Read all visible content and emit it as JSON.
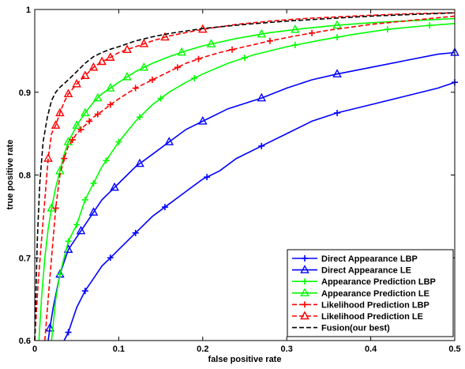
{
  "chart_data": {
    "type": "line",
    "xlabel": "false positive rate",
    "ylabel": "true positive rate",
    "xlim": [
      0,
      0.5
    ],
    "ylim": [
      0.6,
      1
    ],
    "xticks": [
      "0",
      "0.1",
      "0.2",
      "0.3",
      "0.4",
      "0.5"
    ],
    "yticks": [
      "0.6",
      "0.7",
      "0.8",
      "0.9",
      "1"
    ],
    "legend_position": "bottom-right",
    "grid": false,
    "series": [
      {
        "name": "Direct Appearance LBP",
        "color": "#0000ff",
        "dash": "solid",
        "marker": "plus",
        "x": [
          0.035,
          0.04,
          0.045,
          0.05,
          0.06,
          0.07,
          0.08,
          0.09,
          0.1,
          0.12,
          0.14,
          0.16,
          0.18,
          0.2,
          0.22,
          0.24,
          0.27,
          0.3,
          0.33,
          0.36,
          0.4,
          0.44,
          0.48,
          0.5
        ],
        "y": [
          0.6,
          0.61,
          0.625,
          0.64,
          0.66,
          0.675,
          0.69,
          0.7,
          0.71,
          0.73,
          0.75,
          0.765,
          0.78,
          0.795,
          0.805,
          0.82,
          0.835,
          0.85,
          0.865,
          0.875,
          0.885,
          0.895,
          0.905,
          0.912
        ],
        "marker_x": [
          0.04,
          0.06,
          0.09,
          0.12,
          0.155,
          0.205,
          0.27,
          0.36,
          0.5
        ]
      },
      {
        "name": "Direct Appearance LE",
        "color": "#0000ff",
        "dash": "solid",
        "marker": "triangle",
        "x": [
          0.016,
          0.018,
          0.022,
          0.026,
          0.03,
          0.035,
          0.04,
          0.05,
          0.06,
          0.07,
          0.08,
          0.09,
          0.1,
          0.12,
          0.14,
          0.16,
          0.18,
          0.2,
          0.23,
          0.27,
          0.3,
          0.33,
          0.36,
          0.4,
          0.44,
          0.48,
          0.5
        ],
        "y": [
          0.6,
          0.615,
          0.64,
          0.66,
          0.68,
          0.695,
          0.71,
          0.725,
          0.74,
          0.755,
          0.77,
          0.78,
          0.79,
          0.81,
          0.825,
          0.84,
          0.855,
          0.865,
          0.88,
          0.893,
          0.905,
          0.915,
          0.922,
          0.93,
          0.938,
          0.946,
          0.948
        ],
        "marker_x": [
          0.018,
          0.03,
          0.04,
          0.055,
          0.07,
          0.095,
          0.125,
          0.16,
          0.2,
          0.27,
          0.36,
          0.5
        ]
      },
      {
        "name": "Appearance Prediction LBP",
        "color": "#00ff00",
        "dash": "solid",
        "marker": "plus",
        "x": [
          0.02,
          0.025,
          0.03,
          0.035,
          0.04,
          0.05,
          0.06,
          0.07,
          0.08,
          0.09,
          0.1,
          0.12,
          0.14,
          0.16,
          0.18,
          0.2,
          0.23,
          0.26,
          0.3,
          0.34,
          0.38,
          0.42,
          0.46,
          0.5
        ],
        "y": [
          0.6,
          0.65,
          0.68,
          0.7,
          0.72,
          0.74,
          0.77,
          0.79,
          0.81,
          0.825,
          0.84,
          0.865,
          0.885,
          0.9,
          0.912,
          0.922,
          0.935,
          0.945,
          0.955,
          0.963,
          0.97,
          0.976,
          0.98,
          0.983
        ],
        "marker_x": [
          0.03,
          0.04,
          0.05,
          0.06,
          0.07,
          0.085,
          0.1,
          0.125,
          0.15,
          0.19,
          0.25,
          0.31,
          0.36,
          0.42,
          0.47
        ]
      },
      {
        "name": "Appearance Prediction LE",
        "color": "#00ff00",
        "dash": "solid",
        "marker": "triangle",
        "x": [
          0.005,
          0.008,
          0.012,
          0.016,
          0.02,
          0.025,
          0.03,
          0.035,
          0.04,
          0.05,
          0.06,
          0.07,
          0.08,
          0.1,
          0.12,
          0.14,
          0.16,
          0.18,
          0.2,
          0.24,
          0.28,
          0.32,
          0.36,
          0.4,
          0.44,
          0.48,
          0.5
        ],
        "y": [
          0.6,
          0.65,
          0.7,
          0.735,
          0.76,
          0.785,
          0.805,
          0.825,
          0.84,
          0.86,
          0.875,
          0.888,
          0.898,
          0.912,
          0.925,
          0.935,
          0.943,
          0.95,
          0.956,
          0.965,
          0.972,
          0.977,
          0.981,
          0.984,
          0.986,
          0.988,
          0.989
        ],
        "marker_x": [
          0.02,
          0.03,
          0.04,
          0.05,
          0.06,
          0.075,
          0.09,
          0.11,
          0.13,
          0.175,
          0.21,
          0.27,
          0.31,
          0.36
        ]
      },
      {
        "name": "Likelihood Prediction LBP",
        "color": "#ff0000",
        "dash": "dashed",
        "marker": "plus",
        "x": [
          0.012,
          0.016,
          0.02,
          0.025,
          0.03,
          0.035,
          0.04,
          0.05,
          0.06,
          0.07,
          0.08,
          0.09,
          0.1,
          0.12,
          0.14,
          0.16,
          0.18,
          0.2,
          0.22,
          0.25,
          0.28,
          0.31,
          0.35,
          0.4,
          0.45,
          0.5
        ],
        "y": [
          0.6,
          0.65,
          0.7,
          0.76,
          0.8,
          0.82,
          0.835,
          0.85,
          0.86,
          0.87,
          0.877,
          0.885,
          0.892,
          0.905,
          0.915,
          0.925,
          0.935,
          0.942,
          0.948,
          0.955,
          0.962,
          0.968,
          0.975,
          0.982,
          0.987,
          0.992
        ],
        "marker_x": [
          0.025,
          0.035,
          0.045,
          0.055,
          0.065,
          0.075,
          0.09,
          0.12,
          0.14,
          0.17,
          0.195,
          0.235,
          0.28,
          0.33
        ]
      },
      {
        "name": "Likelihood Prediction LE",
        "color": "#ff0000",
        "dash": "dashed",
        "marker": "triangle",
        "x": [
          0.0,
          0.004,
          0.008,
          0.012,
          0.016,
          0.02,
          0.025,
          0.03,
          0.035,
          0.04,
          0.05,
          0.06,
          0.07,
          0.08,
          0.09,
          0.1,
          0.12,
          0.14,
          0.16,
          0.18,
          0.2,
          0.24,
          0.28,
          0.32,
          0.36,
          0.4,
          0.45,
          0.5
        ],
        "y": [
          0.6,
          0.67,
          0.72,
          0.77,
          0.82,
          0.85,
          0.86,
          0.875,
          0.888,
          0.898,
          0.91,
          0.92,
          0.93,
          0.937,
          0.942,
          0.948,
          0.955,
          0.962,
          0.968,
          0.972,
          0.976,
          0.982,
          0.986,
          0.989,
          0.991,
          0.993,
          0.995,
          0.996
        ],
        "marker_x": [
          0.016,
          0.025,
          0.03,
          0.04,
          0.05,
          0.06,
          0.07,
          0.08,
          0.09,
          0.11,
          0.13,
          0.155,
          0.2
        ]
      },
      {
        "name": "Fusion(our best)",
        "color": "#000000",
        "dash": "dashed",
        "marker": "none",
        "x": [
          0.0,
          0.003,
          0.006,
          0.01,
          0.015,
          0.02,
          0.025,
          0.03,
          0.04,
          0.05,
          0.06,
          0.07,
          0.08,
          0.09,
          0.1,
          0.12,
          0.14,
          0.16,
          0.2,
          0.25,
          0.3,
          0.35,
          0.4,
          0.45,
          0.5
        ],
        "y": [
          0.6,
          0.72,
          0.79,
          0.84,
          0.87,
          0.89,
          0.9,
          0.906,
          0.915,
          0.925,
          0.935,
          0.943,
          0.948,
          0.952,
          0.955,
          0.962,
          0.967,
          0.971,
          0.977,
          0.982,
          0.986,
          0.989,
          0.992,
          0.994,
          0.996
        ]
      }
    ]
  }
}
